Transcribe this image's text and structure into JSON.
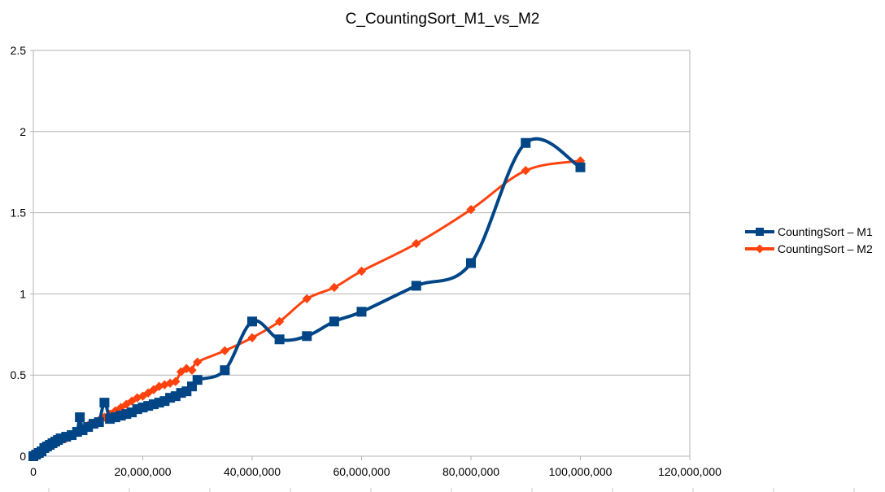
{
  "chart_data": {
    "type": "line",
    "title": "C_CountingSort_M1_vs_M2",
    "xlabel": "",
    "ylabel": "",
    "xlim": [
      0,
      120000000
    ],
    "ylim": [
      0,
      2.5
    ],
    "x_ticks": [
      "0",
      "20,000,000",
      "40,000,000",
      "60,000,000",
      "80,000,000",
      "100,000,000",
      "120,000,000"
    ],
    "y_ticks": [
      "0",
      "0.5",
      "1",
      "1.5",
      "2",
      "2.5"
    ],
    "grid": "horizontal",
    "legend_position": "right",
    "smoothed": true,
    "series": [
      {
        "name": "CountingSort – M1",
        "color": "#004586",
        "marker": "square",
        "x": [
          0,
          500000,
          1000000,
          1500000,
          2000000,
          2500000,
          3000000,
          3500000,
          4000000,
          4500000,
          5000000,
          6000000,
          7000000,
          8000000,
          8500000,
          9000000,
          10000000,
          11000000,
          12000000,
          13000000,
          14000000,
          15000000,
          16000000,
          17000000,
          18000000,
          19000000,
          20000000,
          21000000,
          22000000,
          23000000,
          24000000,
          25000000,
          26000000,
          27000000,
          28000000,
          29000000,
          30000000,
          35000000,
          40000000,
          45000000,
          50000000,
          55000000,
          60000000,
          70000000,
          80000000,
          90000000,
          100000000
        ],
        "values": [
          0.0,
          0.01,
          0.02,
          0.03,
          0.05,
          0.06,
          0.07,
          0.08,
          0.09,
          0.1,
          0.11,
          0.12,
          0.13,
          0.15,
          0.24,
          0.16,
          0.18,
          0.2,
          0.21,
          0.33,
          0.23,
          0.24,
          0.25,
          0.26,
          0.27,
          0.29,
          0.3,
          0.31,
          0.32,
          0.33,
          0.34,
          0.36,
          0.37,
          0.39,
          0.4,
          0.43,
          0.47,
          0.53,
          0.83,
          0.72,
          0.74,
          0.83,
          0.89,
          1.05,
          1.19,
          1.93,
          1.78
        ]
      },
      {
        "name": "CountingSort – M2",
        "color": "#ff420e",
        "marker": "diamond",
        "x": [
          0,
          1000000,
          2000000,
          3000000,
          4000000,
          5000000,
          6000000,
          7000000,
          8000000,
          9000000,
          10000000,
          11000000,
          12000000,
          13000000,
          14000000,
          15000000,
          16000000,
          17000000,
          18000000,
          19000000,
          20000000,
          21000000,
          22000000,
          23000000,
          24000000,
          25000000,
          26000000,
          27000000,
          28000000,
          29000000,
          30000000,
          35000000,
          40000000,
          45000000,
          50000000,
          55000000,
          60000000,
          70000000,
          80000000,
          90000000,
          100000000
        ],
        "values": [
          0.0,
          0.02,
          0.04,
          0.06,
          0.08,
          0.1,
          0.11,
          0.13,
          0.15,
          0.17,
          0.19,
          0.2,
          0.22,
          0.24,
          0.26,
          0.28,
          0.3,
          0.32,
          0.34,
          0.36,
          0.37,
          0.39,
          0.41,
          0.43,
          0.44,
          0.45,
          0.46,
          0.52,
          0.54,
          0.53,
          0.58,
          0.65,
          0.73,
          0.83,
          0.97,
          1.04,
          1.14,
          1.31,
          1.52,
          1.76,
          1.82
        ]
      }
    ]
  },
  "legend": {
    "items": [
      {
        "label": "CountingSort – M1",
        "color": "#004586",
        "marker": "square"
      },
      {
        "label": "CountingSort – M2",
        "color": "#ff420e",
        "marker": "diamond"
      }
    ]
  }
}
